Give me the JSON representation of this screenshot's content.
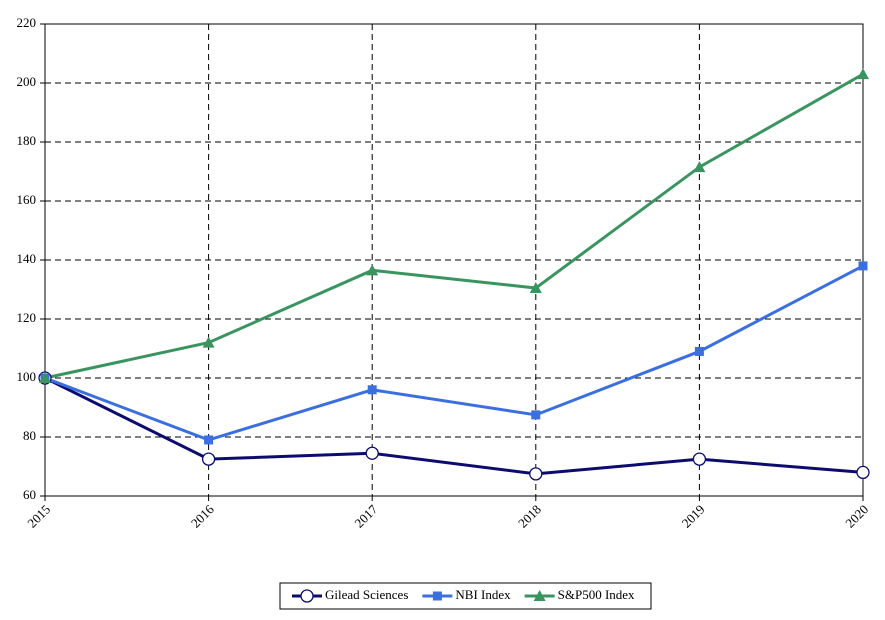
{
  "chart_data": {
    "type": "line",
    "x": [
      2015,
      2016,
      2017,
      2018,
      2019,
      2020
    ],
    "xlim": [
      2015,
      2020
    ],
    "xticks": [
      2015,
      2016,
      2017,
      2018,
      2019,
      2020
    ],
    "ylim": [
      60,
      220
    ],
    "yticks": [
      60,
      80,
      100,
      120,
      140,
      160,
      180,
      200,
      220
    ],
    "grid": true,
    "legend": "bottom",
    "series": [
      {
        "name": "Gilead Sciences",
        "color": "#0c0c6e",
        "marker": "circle",
        "values": [
          100,
          72.5,
          74.5,
          67.5,
          72.5,
          68
        ]
      },
      {
        "name": "NBI Index",
        "color": "#3b6fe0",
        "marker": "square",
        "values": [
          100,
          79,
          96,
          87.5,
          109,
          138
        ]
      },
      {
        "name": "S&P500 Index",
        "color": "#3a9460",
        "marker": "triangle",
        "values": [
          100,
          112,
          136.5,
          130.5,
          171.5,
          203
        ]
      }
    ]
  }
}
